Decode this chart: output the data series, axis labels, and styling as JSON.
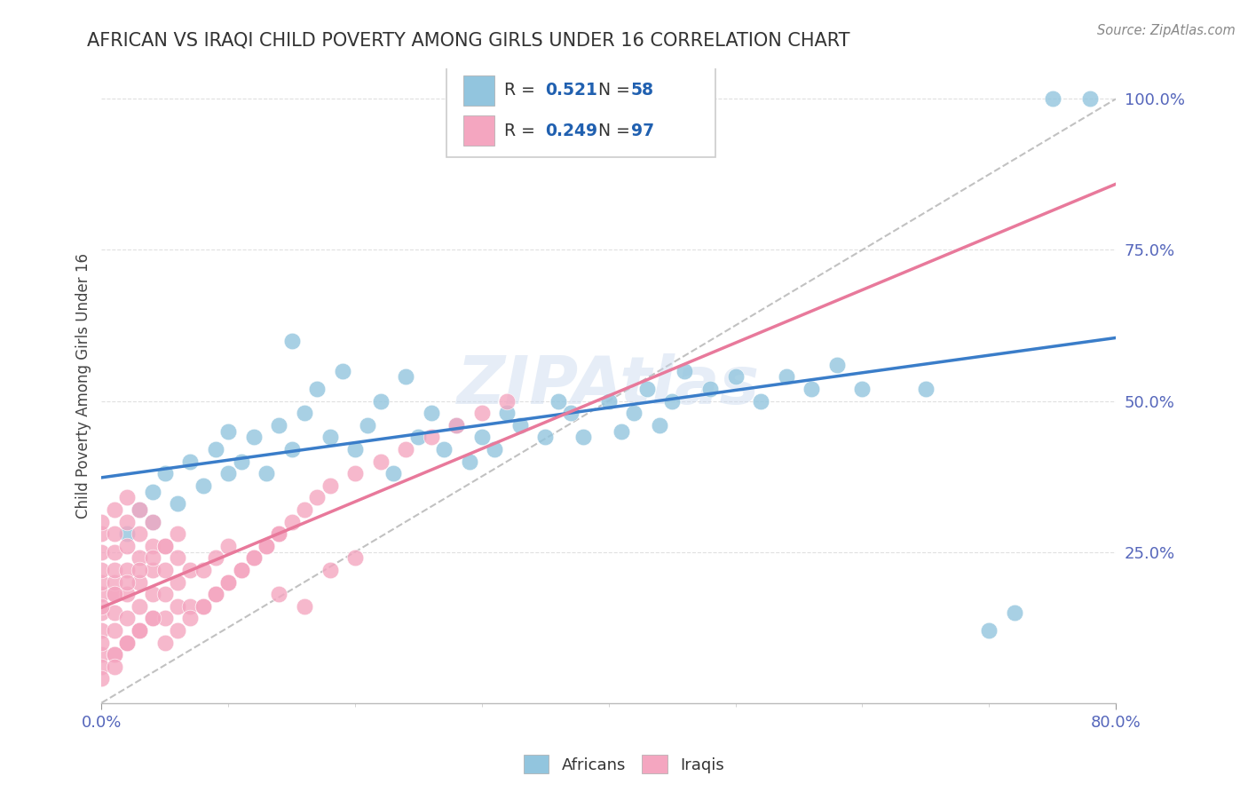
{
  "title": "AFRICAN VS IRAQI CHILD POVERTY AMONG GIRLS UNDER 16 CORRELATION CHART",
  "source": "Source: ZipAtlas.com",
  "ylabel": "Child Poverty Among Girls Under 16",
  "xlim": [
    0.0,
    0.8
  ],
  "ylim": [
    0.0,
    1.05
  ],
  "african_R": 0.521,
  "african_N": 58,
  "iraqi_R": 0.249,
  "iraqi_N": 97,
  "african_color": "#92C5DE",
  "iraqi_color": "#F4A6C0",
  "african_line_color": "#3A7DC9",
  "iraqi_line_color": "#E8799B",
  "diagonal_color": "#BBBBBB",
  "watermark": "ZIPAtlas",
  "legend_R_color": "#2060B0",
  "title_color": "#333333",
  "tick_color": "#5566BB",
  "ylabel_color": "#444444",
  "source_color": "#888888",
  "grid_color": "#DDDDDD",
  "african_x": [
    0.02,
    0.03,
    0.04,
    0.04,
    0.05,
    0.06,
    0.07,
    0.08,
    0.09,
    0.1,
    0.1,
    0.11,
    0.12,
    0.13,
    0.14,
    0.15,
    0.15,
    0.16,
    0.17,
    0.18,
    0.19,
    0.2,
    0.21,
    0.22,
    0.23,
    0.24,
    0.25,
    0.26,
    0.27,
    0.28,
    0.29,
    0.3,
    0.31,
    0.32,
    0.33,
    0.35,
    0.36,
    0.37,
    0.38,
    0.4,
    0.41,
    0.42,
    0.43,
    0.44,
    0.45,
    0.46,
    0.48,
    0.5,
    0.52,
    0.54,
    0.56,
    0.58,
    0.6,
    0.65,
    0.7,
    0.72,
    0.75,
    0.78
  ],
  "african_y": [
    0.28,
    0.32,
    0.3,
    0.35,
    0.38,
    0.33,
    0.4,
    0.36,
    0.42,
    0.38,
    0.45,
    0.4,
    0.44,
    0.38,
    0.46,
    0.42,
    0.6,
    0.48,
    0.52,
    0.44,
    0.55,
    0.42,
    0.46,
    0.5,
    0.38,
    0.54,
    0.44,
    0.48,
    0.42,
    0.46,
    0.4,
    0.44,
    0.42,
    0.48,
    0.46,
    0.44,
    0.5,
    0.48,
    0.44,
    0.5,
    0.45,
    0.48,
    0.52,
    0.46,
    0.5,
    0.55,
    0.52,
    0.54,
    0.5,
    0.54,
    0.52,
    0.56,
    0.52,
    0.52,
    0.12,
    0.15,
    1.0,
    1.0
  ],
  "iraqi_x": [
    0.0,
    0.0,
    0.0,
    0.0,
    0.0,
    0.0,
    0.0,
    0.0,
    0.0,
    0.0,
    0.01,
    0.01,
    0.01,
    0.01,
    0.01,
    0.01,
    0.01,
    0.01,
    0.02,
    0.02,
    0.02,
    0.02,
    0.02,
    0.02,
    0.02,
    0.03,
    0.03,
    0.03,
    0.03,
    0.03,
    0.03,
    0.04,
    0.04,
    0.04,
    0.04,
    0.04,
    0.05,
    0.05,
    0.05,
    0.05,
    0.06,
    0.06,
    0.06,
    0.07,
    0.07,
    0.08,
    0.08,
    0.09,
    0.09,
    0.1,
    0.1,
    0.11,
    0.12,
    0.13,
    0.14,
    0.15,
    0.16,
    0.17,
    0.18,
    0.2,
    0.22,
    0.24,
    0.26,
    0.28,
    0.3,
    0.32,
    0.14,
    0.16,
    0.18,
    0.2,
    0.05,
    0.06,
    0.07,
    0.08,
    0.09,
    0.1,
    0.11,
    0.12,
    0.13,
    0.14,
    0.01,
    0.02,
    0.03,
    0.04,
    0.0,
    0.01,
    0.02,
    0.03,
    0.0,
    0.01,
    0.0,
    0.01,
    0.02,
    0.03,
    0.04,
    0.05,
    0.06
  ],
  "iraqi_y": [
    0.12,
    0.15,
    0.18,
    0.2,
    0.22,
    0.25,
    0.28,
    0.3,
    0.08,
    0.1,
    0.12,
    0.15,
    0.18,
    0.2,
    0.22,
    0.25,
    0.28,
    0.32,
    0.1,
    0.14,
    0.18,
    0.22,
    0.26,
    0.3,
    0.34,
    0.12,
    0.16,
    0.2,
    0.24,
    0.28,
    0.32,
    0.14,
    0.18,
    0.22,
    0.26,
    0.3,
    0.14,
    0.18,
    0.22,
    0.26,
    0.16,
    0.2,
    0.24,
    0.16,
    0.22,
    0.16,
    0.22,
    0.18,
    0.24,
    0.2,
    0.26,
    0.22,
    0.24,
    0.26,
    0.28,
    0.3,
    0.32,
    0.34,
    0.36,
    0.38,
    0.4,
    0.42,
    0.44,
    0.46,
    0.48,
    0.5,
    0.18,
    0.16,
    0.22,
    0.24,
    0.1,
    0.12,
    0.14,
    0.16,
    0.18,
    0.2,
    0.22,
    0.24,
    0.26,
    0.28,
    0.08,
    0.1,
    0.12,
    0.14,
    0.06,
    0.08,
    0.1,
    0.12,
    0.04,
    0.06,
    0.16,
    0.18,
    0.2,
    0.22,
    0.24,
    0.26,
    0.28
  ]
}
